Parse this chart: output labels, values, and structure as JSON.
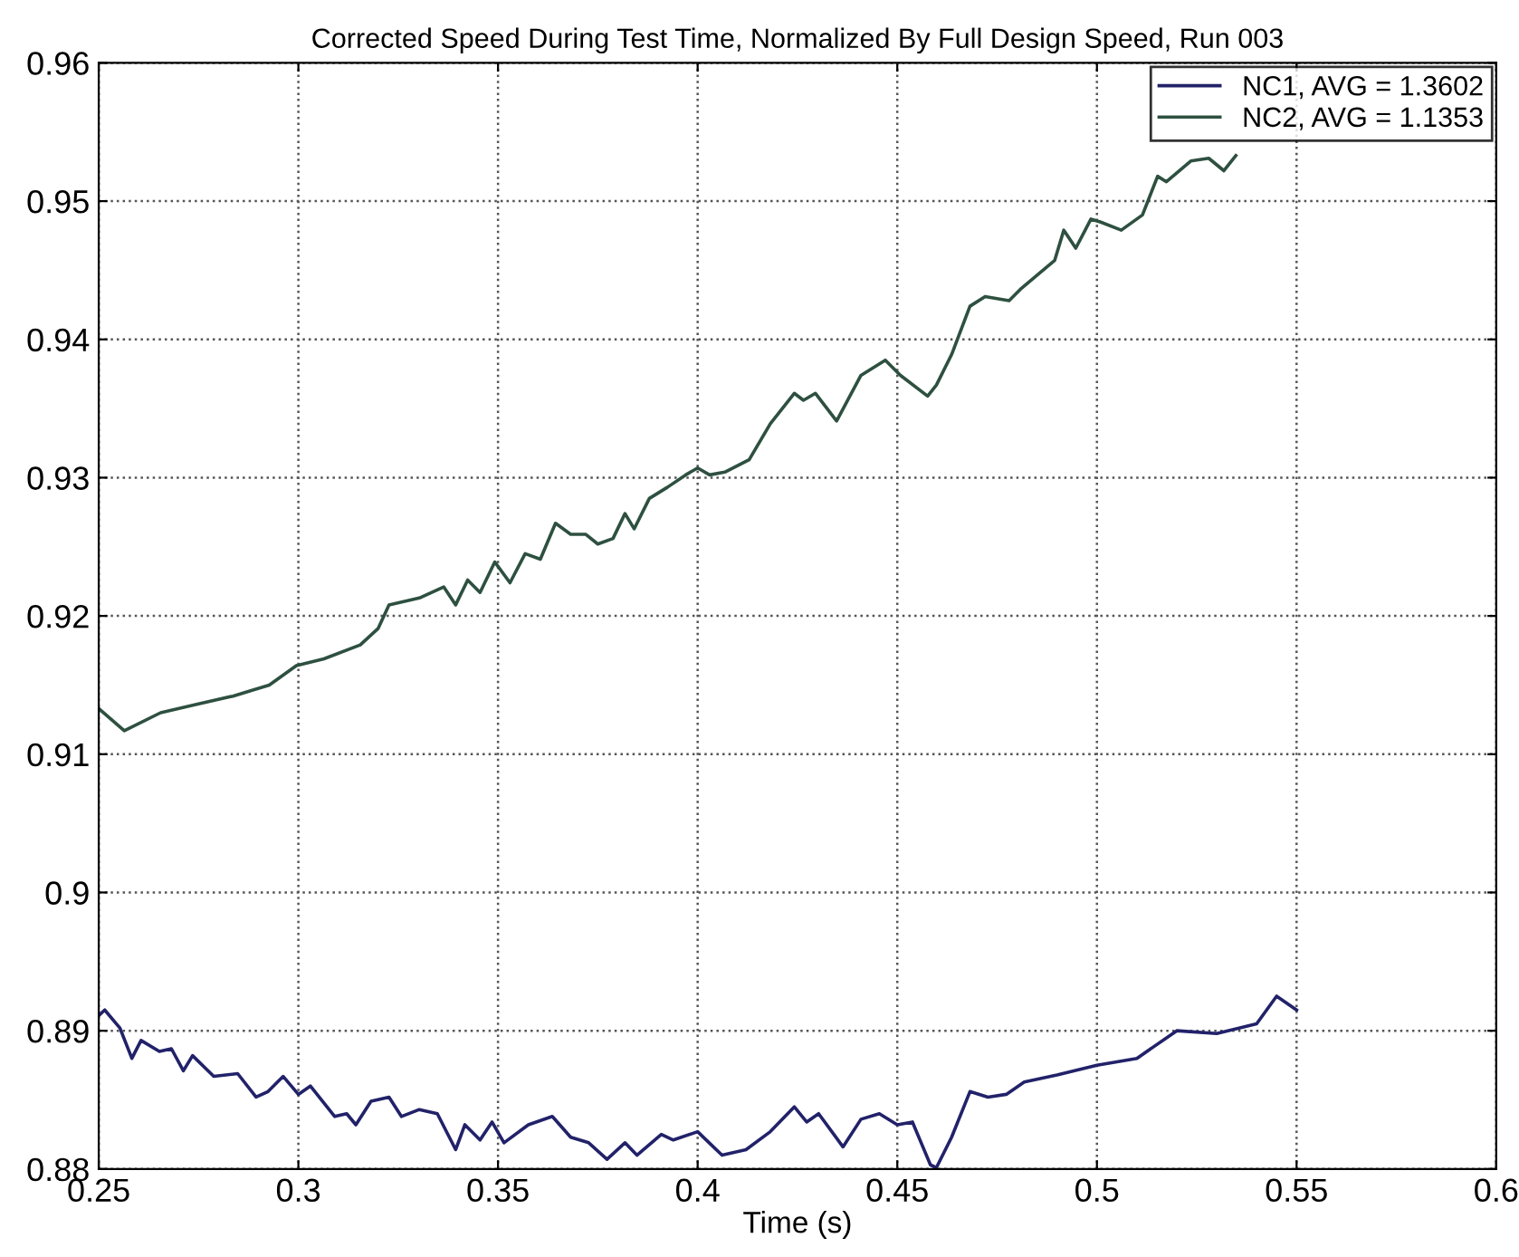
{
  "chart_data": {
    "type": "line",
    "title": "Corrected Speed During Test Time, Normalized By Full Design Speed, Run 003",
    "xlabel": "Time (s)",
    "xlim": [
      0.25,
      0.6
    ],
    "xticks": [
      0.25,
      0.3,
      0.35,
      0.4,
      0.45,
      0.5,
      0.55,
      0.6
    ],
    "ylim": [
      0.88,
      0.96
    ],
    "yticks": [
      0.88,
      0.89,
      0.9,
      0.91,
      0.92,
      0.93,
      0.94,
      0.95,
      0.96
    ],
    "grid": true,
    "legend": "top right",
    "line_style": "solid",
    "marker": "none",
    "series": [
      {
        "name": "NC1, AVG = 1.3602",
        "color": "#22226a",
        "x": [
          0.25,
          0.2515,
          0.2553,
          0.2583,
          0.2606,
          0.2652,
          0.2682,
          0.2712,
          0.2735,
          0.2788,
          0.2848,
          0.2894,
          0.2924,
          0.2962,
          0.3,
          0.303,
          0.3091,
          0.3121,
          0.3144,
          0.3182,
          0.3227,
          0.3258,
          0.3303,
          0.3348,
          0.3394,
          0.3417,
          0.3455,
          0.3485,
          0.3515,
          0.3576,
          0.3636,
          0.3682,
          0.3727,
          0.3773,
          0.3818,
          0.3848,
          0.3909,
          0.3939,
          0.4,
          0.4061,
          0.4121,
          0.4182,
          0.4242,
          0.4273,
          0.4303,
          0.4364,
          0.4409,
          0.4455,
          0.45,
          0.4538,
          0.4583,
          0.4598,
          0.4636,
          0.4682,
          0.4727,
          0.4773,
          0.4818,
          0.49,
          0.5,
          0.51,
          0.52,
          0.53,
          0.54,
          0.545,
          0.55
        ],
        "values": [
          0.8911,
          0.8915,
          0.8902,
          0.888,
          0.8893,
          0.8885,
          0.8887,
          0.8871,
          0.8882,
          0.8867,
          0.8869,
          0.8852,
          0.8856,
          0.8867,
          0.8854,
          0.886,
          0.8838,
          0.884,
          0.8832,
          0.8849,
          0.8852,
          0.8838,
          0.8843,
          0.884,
          0.8814,
          0.8832,
          0.8821,
          0.8834,
          0.8819,
          0.8832,
          0.8838,
          0.8823,
          0.8819,
          0.8807,
          0.8819,
          0.881,
          0.8825,
          0.8821,
          0.8827,
          0.881,
          0.8814,
          0.8827,
          0.8845,
          0.8834,
          0.884,
          0.8816,
          0.8836,
          0.884,
          0.8832,
          0.8834,
          0.8803,
          0.8801,
          0.8823,
          0.8856,
          0.8852,
          0.8854,
          0.8863,
          0.8868,
          0.8875,
          0.888,
          0.89,
          0.8898,
          0.8905,
          0.8925,
          0.8915
        ]
      },
      {
        "name": "NC2, AVG = 1.1353",
        "color": "#2e5040",
        "x": [
          0.25,
          0.2564,
          0.2655,
          0.2745,
          0.2836,
          0.2927,
          0.2995,
          0.3064,
          0.3155,
          0.32,
          0.3227,
          0.3303,
          0.3364,
          0.3394,
          0.3424,
          0.3455,
          0.3492,
          0.353,
          0.3568,
          0.3606,
          0.3644,
          0.3682,
          0.372,
          0.375,
          0.3788,
          0.3818,
          0.3841,
          0.3879,
          0.3924,
          0.397,
          0.4,
          0.403,
          0.4068,
          0.4129,
          0.4182,
          0.4242,
          0.4265,
          0.4295,
          0.4348,
          0.4409,
          0.447,
          0.4508,
          0.4576,
          0.4598,
          0.4636,
          0.4682,
          0.472,
          0.478,
          0.4811,
          0.4848,
          0.4894,
          0.4917,
          0.4947,
          0.4985,
          0.5008,
          0.5061,
          0.5114,
          0.5152,
          0.5174,
          0.5235,
          0.528,
          0.5318,
          0.5348
        ],
        "values": [
          0.9133,
          0.9117,
          0.913,
          0.9136,
          0.9142,
          0.915,
          0.9164,
          0.9169,
          0.9179,
          0.9191,
          0.9208,
          0.9213,
          0.9221,
          0.9208,
          0.9226,
          0.9217,
          0.9239,
          0.9224,
          0.9245,
          0.9241,
          0.9267,
          0.9259,
          0.9259,
          0.9252,
          0.9256,
          0.9274,
          0.9263,
          0.9285,
          0.9293,
          0.9302,
          0.9307,
          0.9302,
          0.9304,
          0.9313,
          0.9339,
          0.9361,
          0.9356,
          0.9361,
          0.9341,
          0.9374,
          0.9385,
          0.9374,
          0.9359,
          0.9367,
          0.9389,
          0.9424,
          0.9431,
          0.9428,
          0.9437,
          0.9446,
          0.9457,
          0.9479,
          0.9466,
          0.9487,
          0.9485,
          0.9479,
          0.949,
          0.9518,
          0.9514,
          0.9529,
          0.9531,
          0.9522,
          0.9533
        ]
      }
    ]
  }
}
